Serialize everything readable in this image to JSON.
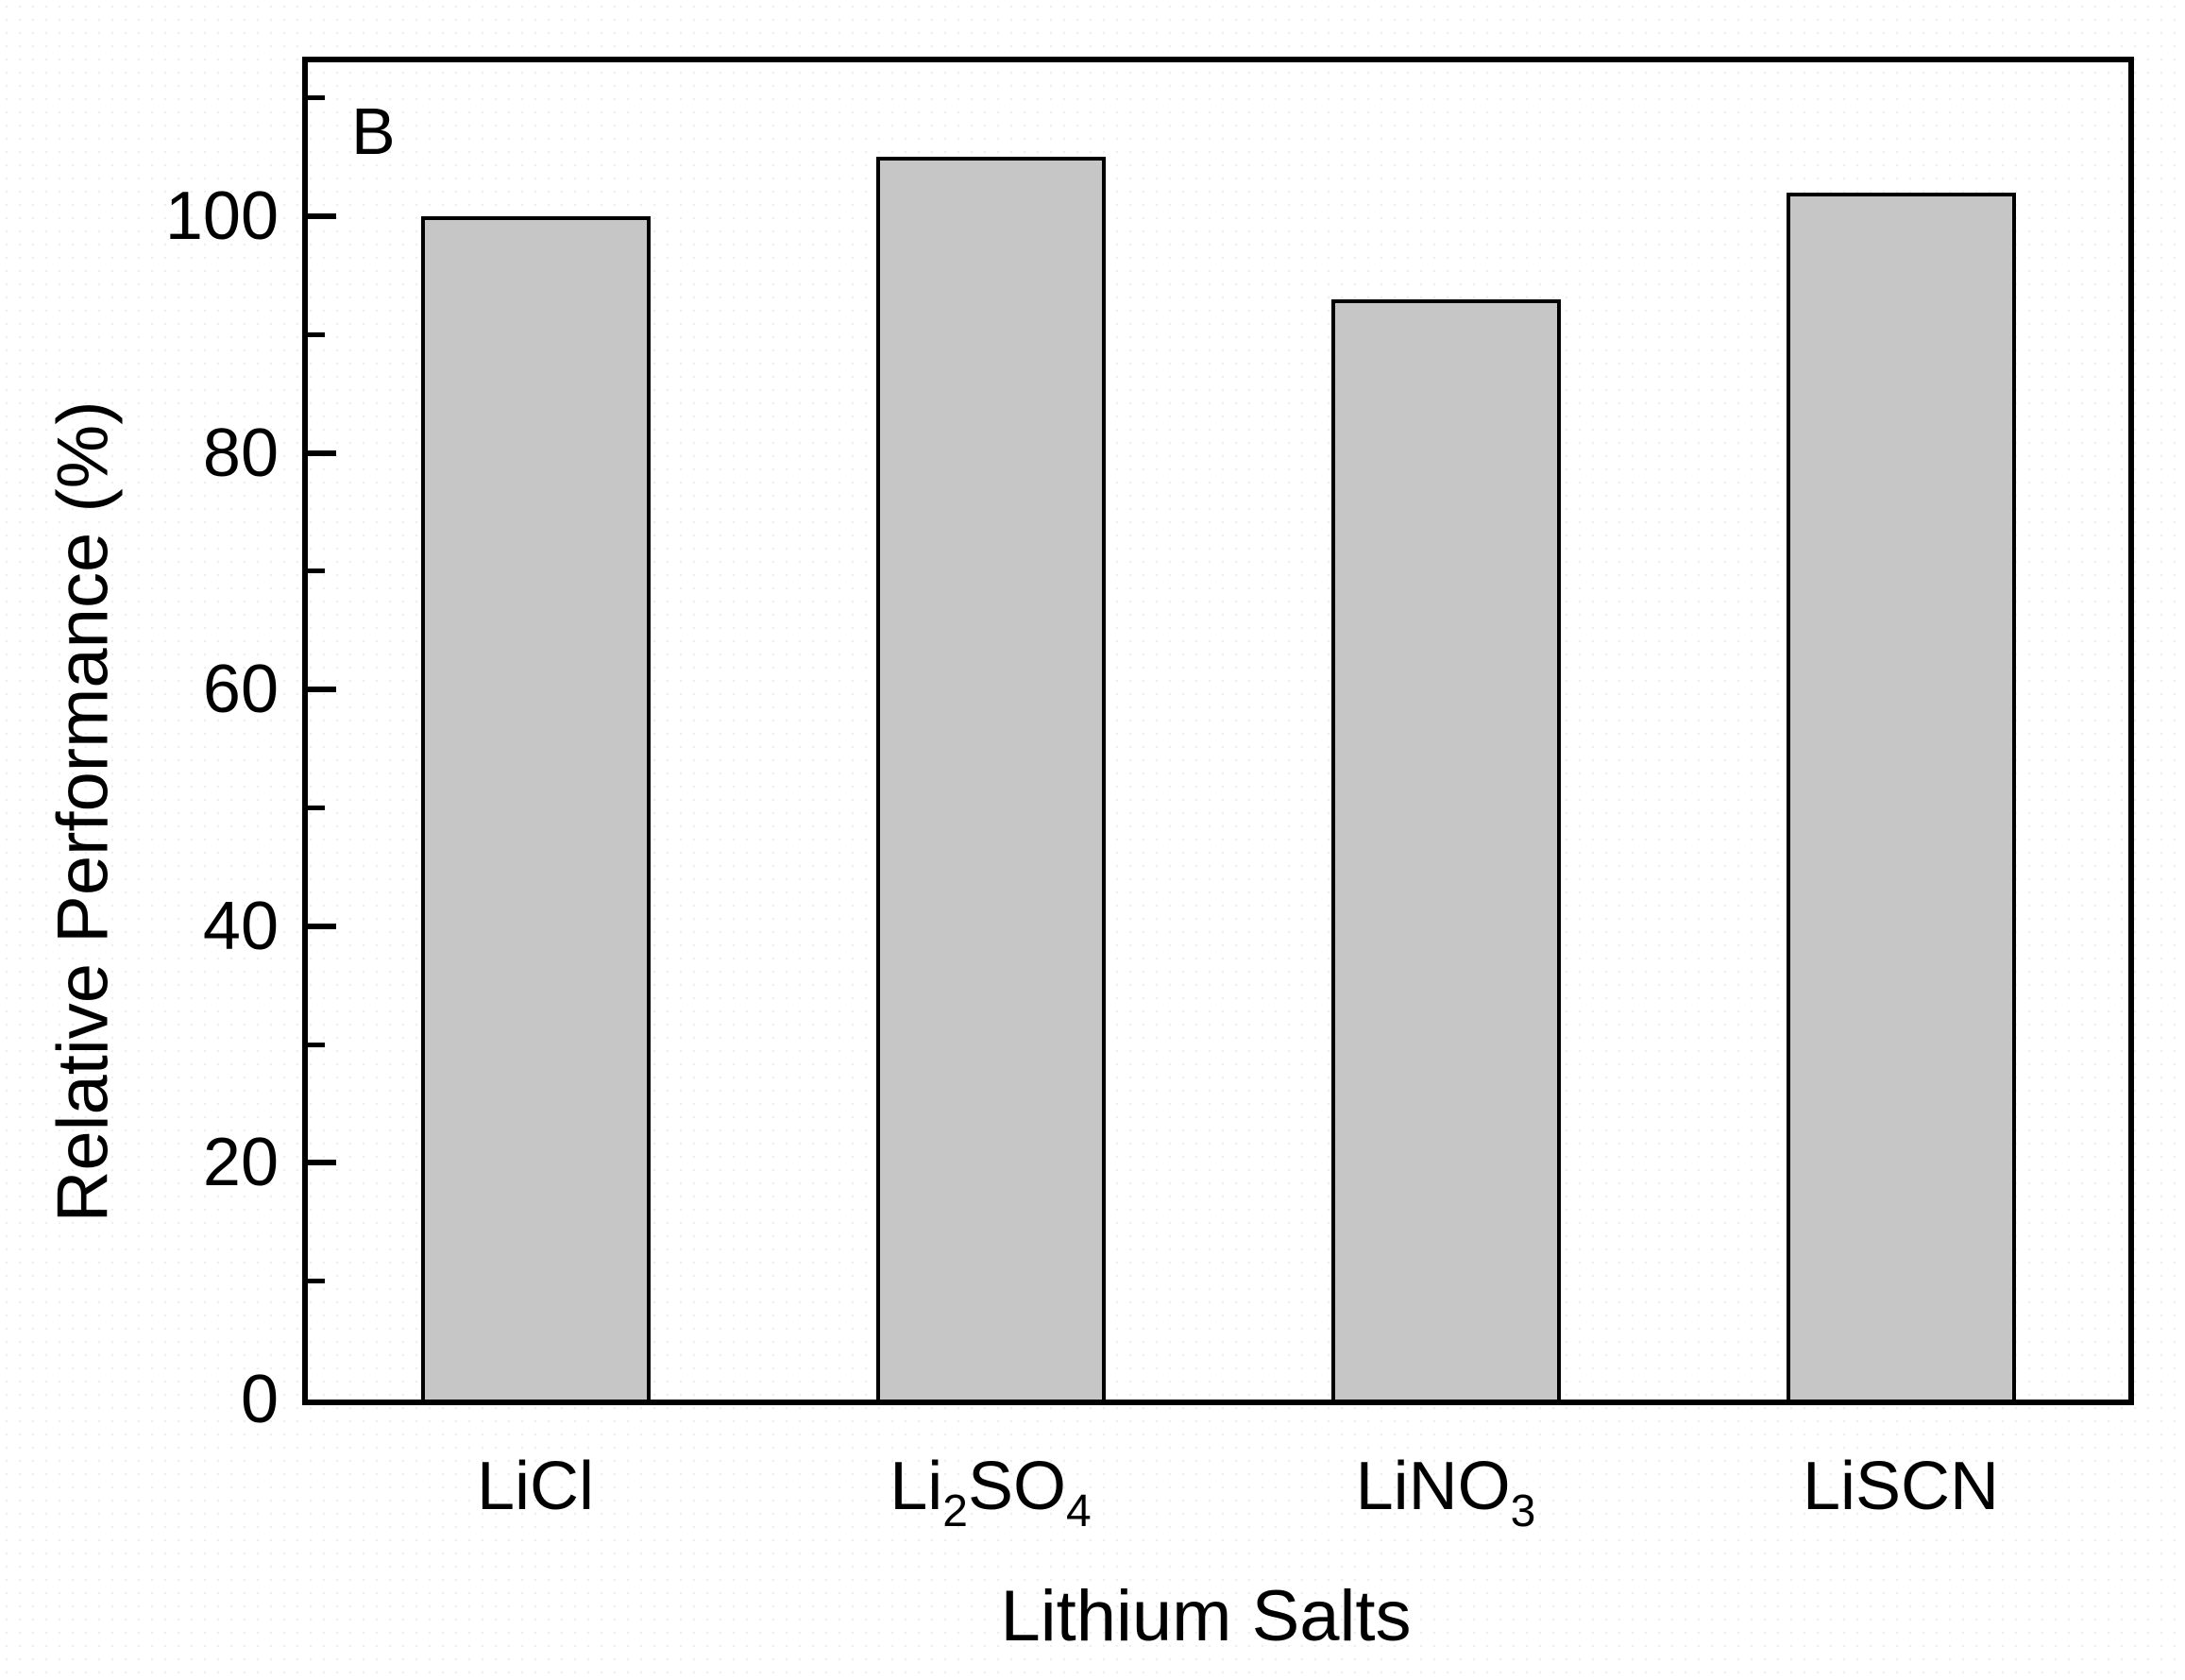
{
  "panel_label": "B",
  "colors": {
    "bar_fill": "#c6c6c6",
    "bar_border": "#000000",
    "axis": "#000000",
    "background": "#ffffff"
  },
  "chart_data": {
    "type": "bar",
    "title": "",
    "xlabel": "Lithium Salts",
    "ylabel": "Relative Performance (%)",
    "categories": [
      "LiCl",
      "Li2SO4",
      "LiNO3",
      "LiSCN"
    ],
    "category_parts": [
      [
        [
          "LiCl",
          false
        ]
      ],
      [
        [
          "Li",
          false
        ],
        [
          "2",
          true
        ],
        [
          "SO",
          false
        ],
        [
          "4",
          true
        ]
      ],
      [
        [
          "LiNO",
          false
        ],
        [
          "3",
          true
        ]
      ],
      [
        [
          "LiSCN",
          false
        ]
      ]
    ],
    "values": [
      100,
      105,
      93,
      102
    ],
    "ylim": [
      0,
      113
    ],
    "yticks": [
      0,
      20,
      40,
      60,
      80,
      100
    ],
    "yticks_minor": [
      10,
      30,
      50,
      70,
      90,
      110
    ],
    "bar_width_fraction": 0.505,
    "grid": false,
    "legend_position": "none"
  }
}
